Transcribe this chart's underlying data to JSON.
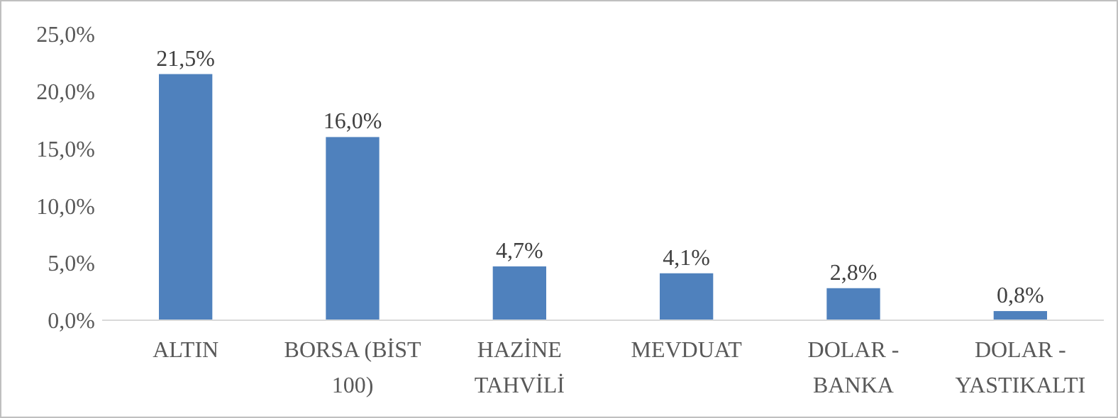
{
  "chart_data": {
    "type": "bar",
    "categories": [
      "ALTIN",
      "BORSA (BİST 100)",
      "HAZİNE TAHVİLİ",
      "MEVDUAT",
      "DOLAR - BANKA",
      "DOLAR - YASTIKALTI"
    ],
    "values": [
      21.5,
      16.0,
      4.7,
      4.1,
      2.8,
      0.8
    ],
    "color": "#4f81bd",
    "value_labels": [
      "21,5%",
      "16,0%",
      "4,7%",
      "4,1%",
      "2,8%",
      "0,8%"
    ],
    "ylim": [
      0,
      25
    ],
    "yticks": [
      {
        "value": 0,
        "label": "0,0%"
      },
      {
        "value": 5,
        "label": "5,0%"
      },
      {
        "value": 10,
        "label": "10,0%"
      },
      {
        "value": 15,
        "label": "15,0%"
      },
      {
        "value": 20,
        "label": "20,0%"
      },
      {
        "value": 25,
        "label": "25,0%"
      }
    ],
    "grid": false
  }
}
